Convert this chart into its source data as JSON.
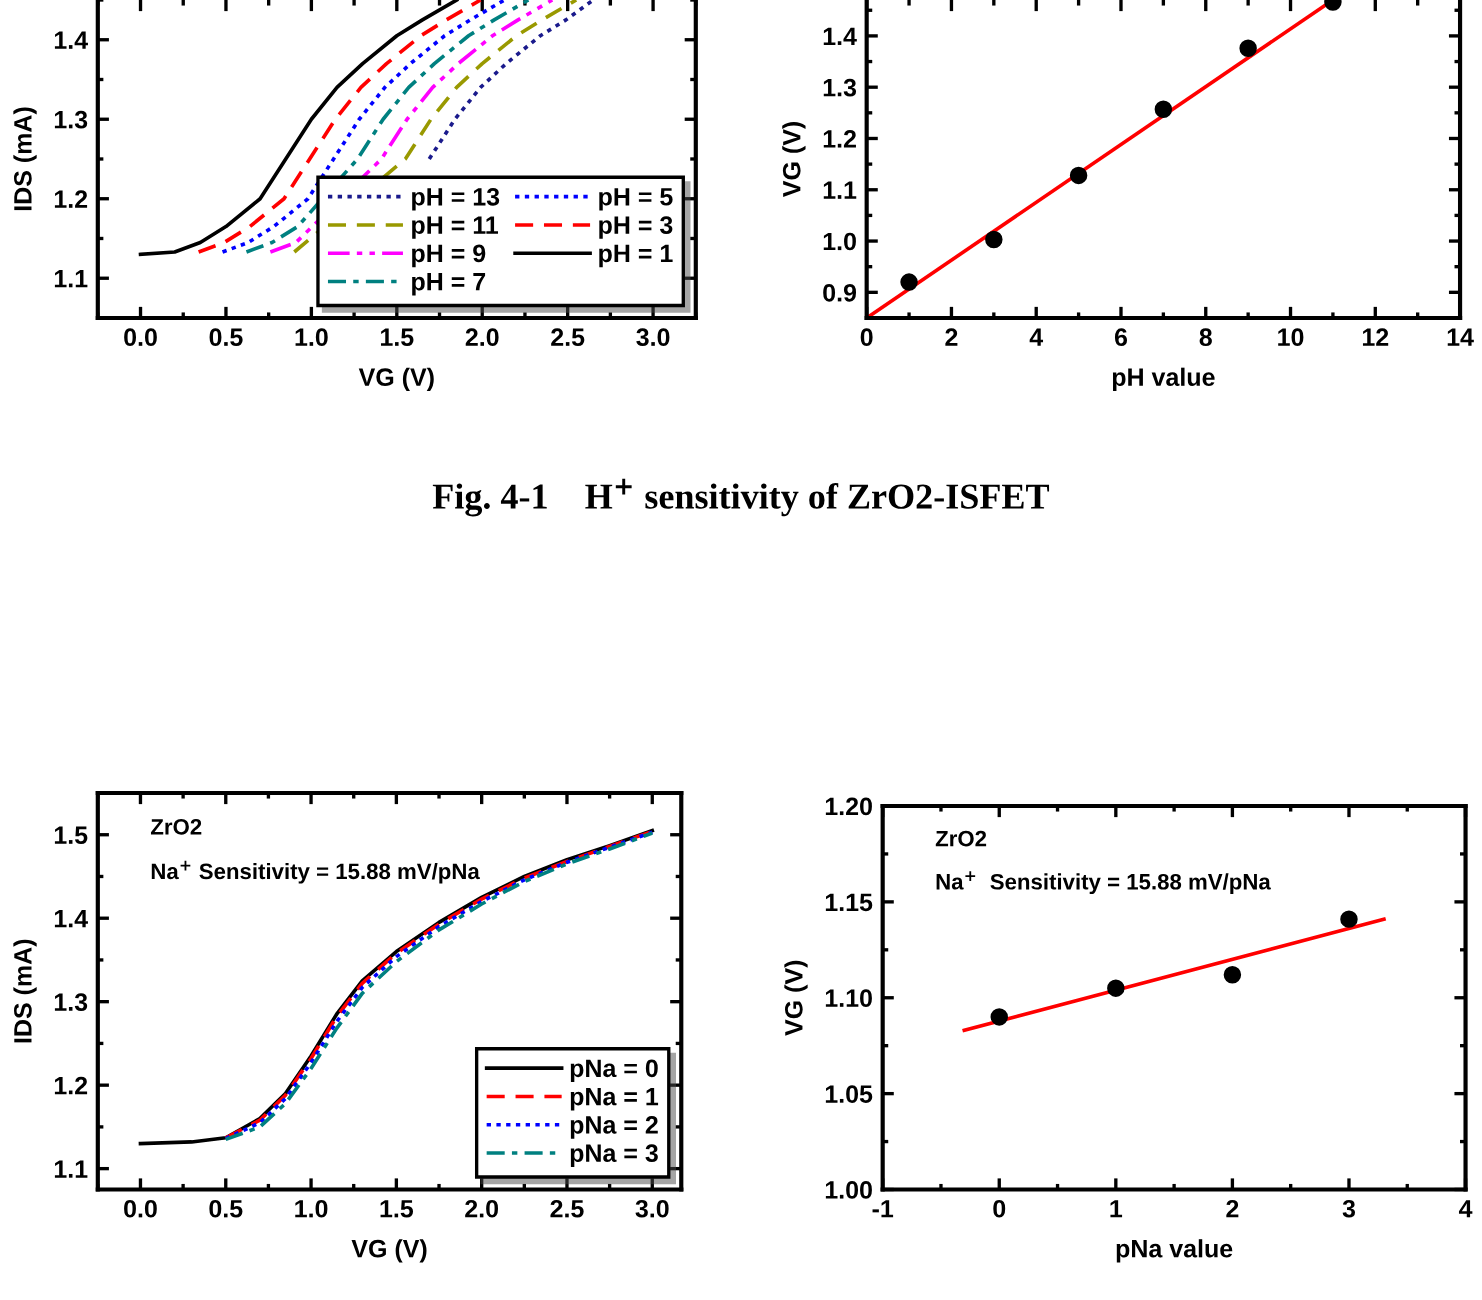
{
  "chart_data": [
    {
      "type": "line",
      "xlabel": "VG (V)",
      "ylabel": "IDS (mA)",
      "xlim": [
        -0.25,
        3.25
      ],
      "ylim": [
        1.05,
        1.45
      ],
      "xticks": [
        {
          "value": 0,
          "label": "0.0"
        },
        0.5,
        {
          "value": 1,
          "label": "1.0"
        },
        1.5,
        {
          "value": 2,
          "label": "2.0"
        },
        2.5,
        {
          "value": 3,
          "label": "3.0"
        }
      ],
      "yticks": [
        1.1,
        1.2,
        1.3,
        1.4
      ],
      "legend": "bottom right",
      "annotations": [
        "Fig. 4-1    H$^{+}$ sensitivity of ZrO2-ISFET"
      ],
      "series": [
        {
          "name": "pH = 13",
          "color": "#1a1a8c",
          "line_style": "dotted",
          "x": [
            1.69,
            1.84,
            1.99,
            2.14,
            2.34,
            2.49,
            2.65
          ],
          "values": [
            1.25,
            1.3,
            1.34,
            1.37,
            1.405,
            1.425,
            1.45
          ]
        },
        {
          "name": "pH = 11",
          "color": "#999900",
          "line_style": "dashed",
          "x": [
            0.9,
            1.55,
            1.7,
            1.85,
            2.0,
            2.2,
            2.35,
            2.55
          ],
          "values": [
            1.133,
            1.25,
            1.3,
            1.34,
            1.37,
            1.405,
            1.425,
            1.45
          ]
        },
        {
          "name": "pH = 9",
          "color": "#ff00ff",
          "line_style": "dashdotdot",
          "x": [
            0.76,
            0.91,
            1.41,
            1.56,
            1.71,
            1.86,
            2.06,
            2.21,
            2.41
          ],
          "values": [
            1.133,
            1.145,
            1.25,
            1.3,
            1.34,
            1.37,
            1.405,
            1.425,
            1.45
          ]
        },
        {
          "name": "pH = 7",
          "color": "#008080",
          "line_style": "dashdot",
          "x": [
            0.62,
            0.77,
            0.92,
            1.27,
            1.42,
            1.57,
            1.72,
            1.92,
            2.07,
            2.27
          ],
          "values": [
            1.133,
            1.145,
            1.165,
            1.25,
            1.3,
            1.34,
            1.37,
            1.405,
            1.425,
            1.45
          ]
        },
        {
          "name": "pH = 5",
          "color": "#0000ff",
          "line_style": "dotted",
          "x": [
            0.48,
            0.63,
            0.78,
            0.98,
            1.13,
            1.28,
            1.43,
            1.58,
            1.78,
            1.93,
            2.13
          ],
          "values": [
            1.133,
            1.145,
            1.165,
            1.2,
            1.25,
            1.3,
            1.34,
            1.37,
            1.405,
            1.425,
            1.45
          ]
        },
        {
          "name": "pH = 3",
          "color": "#ff0000",
          "line_style": "dashed",
          "x": [
            0.34,
            0.49,
            0.64,
            0.84,
            0.99,
            1.14,
            1.29,
            1.44,
            1.64,
            1.79,
            1.99
          ],
          "values": [
            1.133,
            1.145,
            1.165,
            1.2,
            1.25,
            1.3,
            1.34,
            1.37,
            1.405,
            1.425,
            1.45
          ]
        },
        {
          "name": "pH = 1",
          "color": "#000000",
          "line_style": "solid",
          "x": [
            0,
            0.2,
            0.35,
            0.5,
            0.7,
            0.85,
            1.0,
            1.15,
            1.3,
            1.5,
            1.65,
            1.85
          ],
          "values": [
            1.13,
            1.133,
            1.145,
            1.165,
            1.2,
            1.25,
            1.3,
            1.34,
            1.37,
            1.405,
            1.425,
            1.45
          ]
        }
      ]
    },
    {
      "type": "scatter",
      "xlabel": "pH value",
      "ylabel": "VG (V)",
      "xlim": [
        0,
        14
      ],
      "ylim": [
        0.85,
        1.47
      ],
      "xticks": [
        0,
        2,
        4,
        6,
        8,
        10,
        12,
        14
      ],
      "yticks": [
        0.9,
        {
          "value": 1.0,
          "label": "1.0"
        },
        1.1,
        1.2,
        1.3,
        1.4
      ],
      "marker": "circle",
      "series": [
        {
          "color": "#000000",
          "x": [
            1,
            3,
            5,
            7,
            9,
            11
          ],
          "values": [
            0.92,
            1.003,
            1.128,
            1.257,
            1.376,
            1.466
          ]
        },
        {
          "type": "line",
          "color": "#ff0000",
          "line_style": "solid",
          "marker": "none",
          "x": [
            0,
            11.0
          ],
          "values": [
            0.85,
            1.47
          ]
        }
      ]
    },
    {
      "type": "line",
      "xlabel": "VG (V)",
      "ylabel": "IDS (mA)",
      "xlim": [
        -0.25,
        3.17
      ],
      "ylim": [
        1.075,
        1.55
      ],
      "xticks": [
        {
          "value": 0,
          "label": "0.0"
        },
        0.5,
        {
          "value": 1,
          "label": "1.0"
        },
        1.5,
        {
          "value": 2,
          "label": "2.0"
        },
        2.5,
        {
          "value": 3,
          "label": "3.0"
        }
      ],
      "yticks": [
        1.1,
        1.2,
        1.3,
        1.4,
        1.5
      ],
      "legend": "bottom right",
      "annotations": [
        "ZrO2",
        "Na$^{+}$ Sensitivity = 15.88 mV/pNa"
      ],
      "series": [
        {
          "name": "pNa = 0",
          "color": "#000000",
          "line_style": "solid",
          "x": [
            0,
            0.3,
            0.5,
            0.7,
            0.85,
            1.0,
            1.15,
            1.3,
            1.5,
            1.75,
            2.0,
            2.25,
            2.5,
            2.75,
            3.0
          ],
          "values": [
            1.13,
            1.132,
            1.137,
            1.16,
            1.19,
            1.235,
            1.285,
            1.325,
            1.36,
            1.395,
            1.425,
            1.45,
            1.47,
            1.487,
            1.505
          ]
        },
        {
          "name": "pNa = 1",
          "color": "#ff0000",
          "line_style": "dashed",
          "x": [
            0.5,
            0.7,
            0.85,
            1.0,
            1.15,
            1.3,
            1.5,
            1.75,
            2.0,
            2.25,
            2.5,
            2.75,
            3.0
          ],
          "values": [
            1.137,
            1.158,
            1.188,
            1.232,
            1.282,
            1.322,
            1.358,
            1.393,
            1.423,
            1.448,
            1.468,
            1.486,
            1.504
          ]
        },
        {
          "name": "pNa = 2",
          "color": "#0000ff",
          "line_style": "dotted",
          "x": [
            0.5,
            0.7,
            0.85,
            1.0,
            1.15,
            1.3,
            1.5,
            1.75,
            2.0,
            2.25,
            2.5,
            2.75,
            3.0
          ],
          "values": [
            1.136,
            1.155,
            1.184,
            1.227,
            1.276,
            1.317,
            1.354,
            1.39,
            1.42,
            1.446,
            1.467,
            1.485,
            1.503
          ]
        },
        {
          "name": "pNa = 3",
          "color": "#008080",
          "line_style": "dashdot",
          "x": [
            0.5,
            0.7,
            0.85,
            1.0,
            1.15,
            1.3,
            1.5,
            1.75,
            2.0,
            2.25,
            2.5,
            2.75,
            3.0
          ],
          "values": [
            1.135,
            1.15,
            1.178,
            1.22,
            1.268,
            1.31,
            1.348,
            1.386,
            1.417,
            1.444,
            1.465,
            1.483,
            1.502
          ]
        }
      ]
    },
    {
      "type": "scatter",
      "xlabel": "pNa value",
      "ylabel": "VG (V)",
      "xlim": [
        -1,
        4
      ],
      "ylim": [
        1.0,
        1.2
      ],
      "xticks": [
        -1,
        0,
        1,
        2,
        3,
        4
      ],
      "yticks": [
        {
          "value": 1.0,
          "label": "1.00"
        },
        1.05,
        {
          "value": 1.1,
          "label": "1.10"
        },
        1.15,
        {
          "value": 1.2,
          "label": "1.20"
        }
      ],
      "marker": "circle",
      "annotations": [
        "ZrO2",
        "Na$^{+}$  Sensitivity = 15.88 mV/pNa"
      ],
      "series": [
        {
          "color": "#000000",
          "x": [
            0,
            1,
            2,
            3
          ],
          "values": [
            1.09,
            1.105,
            1.112,
            1.141
          ]
        },
        {
          "type": "line",
          "color": "#ff0000",
          "line_style": "solid",
          "marker": "none",
          "x": [
            -0.3,
            3.3
          ],
          "values": [
            1.083,
            1.141
          ]
        }
      ]
    }
  ]
}
